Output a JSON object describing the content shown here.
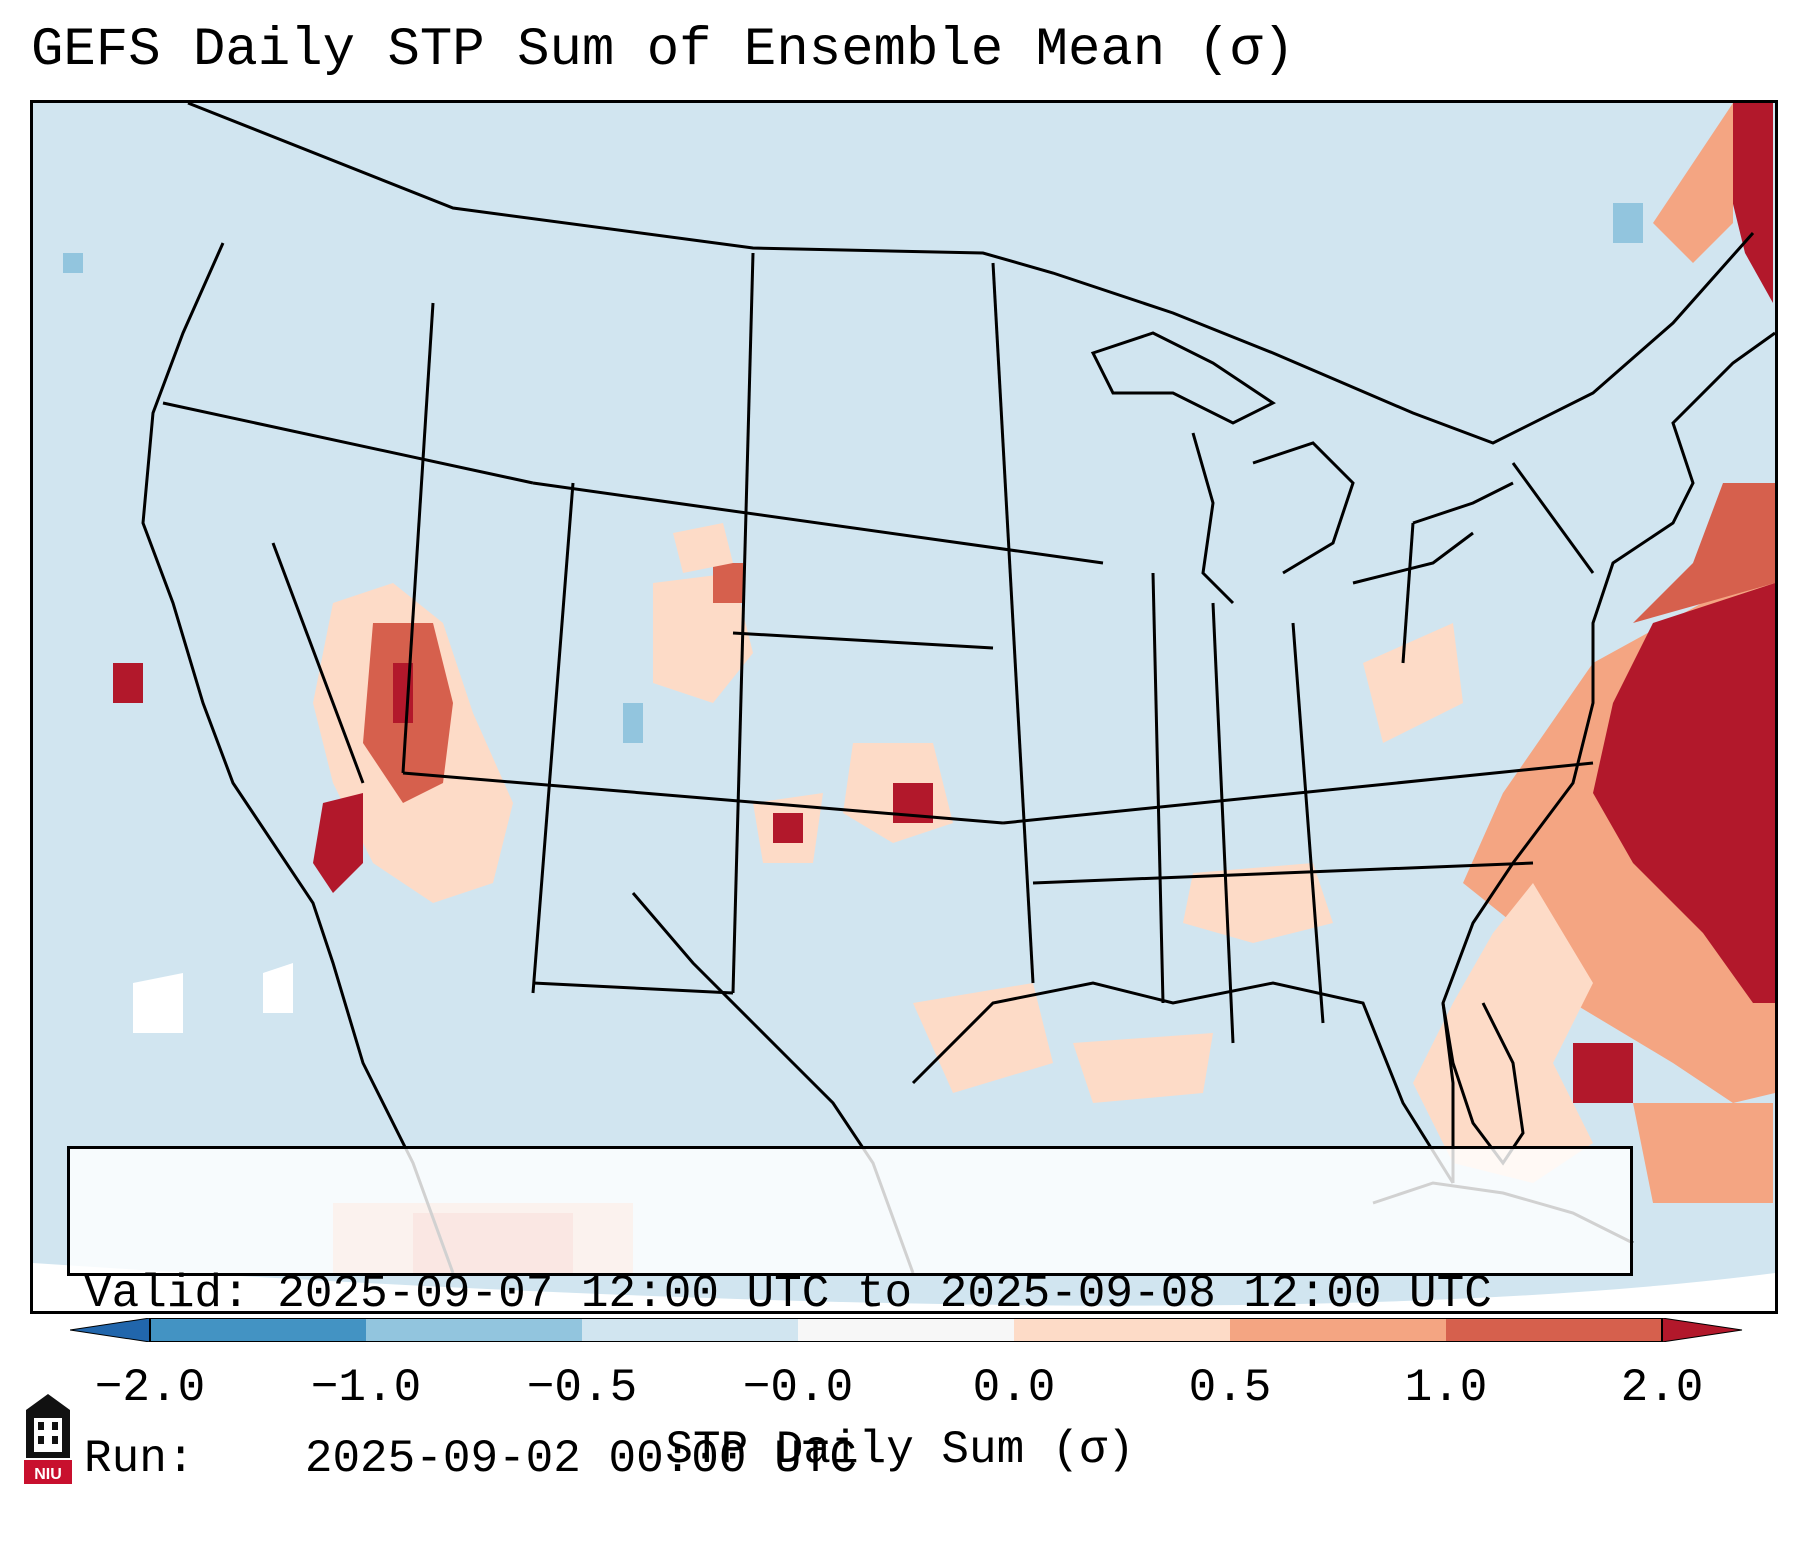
{
  "title": "GEFS Daily STP Sum of Ensemble Mean (σ)",
  "info": {
    "valid_label": "Valid:",
    "valid_value": "2025-09-07 12:00 UTC to 2025-09-08 12:00 UTC",
    "run_label": "Run:",
    "run_value": "2025-09-02 00:00 UTC"
  },
  "colorbar": {
    "label": "STP Daily Sum (σ)",
    "ticks": [
      "−2.0",
      "−1.0",
      "−0.5",
      "−0.0",
      "0.0",
      "0.5",
      "1.0",
      "2.0"
    ],
    "colors": [
      "#4393c3",
      "#92c5de",
      "#d1e5f0",
      "#f7f7f7",
      "#fddbc7",
      "#f4a582",
      "#d6604d"
    ],
    "extend_low": "#2166ac",
    "extend_high": "#b2182b"
  },
  "map": {
    "background": "#d1e5f0",
    "outside": "#ffffff",
    "boundary_color": "#000000"
  },
  "logo": {
    "name": "NIU"
  }
}
